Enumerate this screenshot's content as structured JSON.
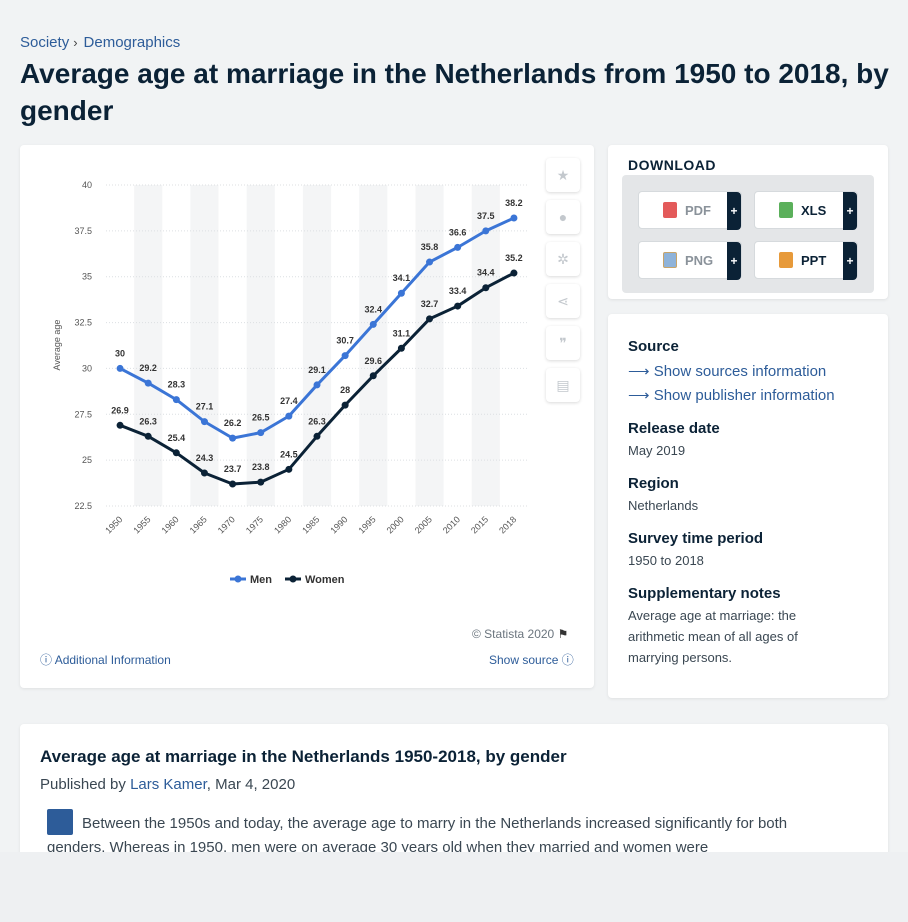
{
  "breadcrumb": {
    "item1": "Society",
    "sep": "›",
    "item2": "Demographics"
  },
  "page": {
    "title": "Average age at marriage in the Netherlands from 1950 to 2018, by gender"
  },
  "download": {
    "title": "DOWNLOAD",
    "pdf": "PDF",
    "xls": "XLS",
    "png": "PNG",
    "ppt": "PPT",
    "plus": "+"
  },
  "meta": {
    "source_h": "Source",
    "source_link1": "Show sources information",
    "source_link2": "Show publisher information",
    "release_h": "Release date",
    "release_v": "May 2019",
    "region_h": "Region",
    "region_v": "Netherlands",
    "period_h": "Survey time period",
    "period_v": "1950 to 2018",
    "notes_h": "Supplementary notes",
    "notes_v": "Average age at marriage: the arithmetic mean of all ages of marrying persons."
  },
  "chart_footer": {
    "copyright": "© Statista 2020",
    "additional": "Additional Information",
    "show_source": "Show source"
  },
  "description": {
    "title": "Average age at marriage in the Netherlands 1950-2018, by gender",
    "published_by": "Published by",
    "author": "Lars Kamer",
    "date": ", Mar 4, 2020",
    "text": "Between the 1950s and today, the average age to marry in the Netherlands increased significantly for both genders. Whereas in 1950, men were on average 30 years old when they married and women were"
  },
  "colors": {
    "men": "#3b75d6",
    "women": "#0b2236",
    "link": "#2d5c99"
  },
  "chart_data": {
    "type": "line",
    "ylabel": "Average age",
    "xlabel": "",
    "ylim": [
      22.5,
      40
    ],
    "yticks": [
      22.5,
      25,
      27.5,
      30,
      32.5,
      35,
      37.5,
      40
    ],
    "categories": [
      "1950",
      "1955",
      "1960",
      "1965",
      "1970",
      "1975",
      "1980",
      "1985",
      "1990",
      "1995",
      "2000",
      "2005",
      "2010",
      "2015",
      "2018"
    ],
    "series": [
      {
        "name": "Men",
        "values": [
          30,
          29.2,
          28.3,
          27.1,
          26.2,
          26.5,
          27.4,
          29.1,
          30.7,
          32.4,
          34.1,
          35.8,
          36.6,
          37.5,
          38.2
        ]
      },
      {
        "name": "Women",
        "values": [
          26.9,
          26.3,
          25.4,
          24.3,
          23.7,
          23.8,
          24.5,
          26.3,
          28,
          29.6,
          31.1,
          32.7,
          33.4,
          34.4,
          35.2
        ]
      }
    ],
    "grid": true,
    "legend": "bottom"
  }
}
